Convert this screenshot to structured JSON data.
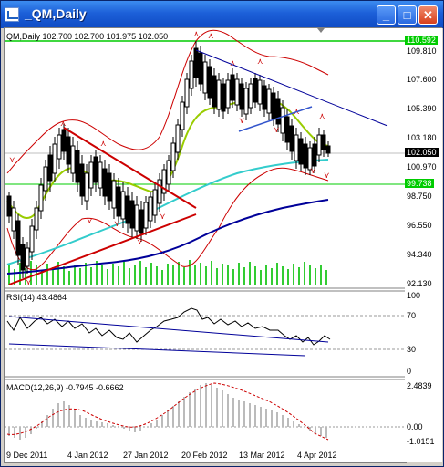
{
  "window": {
    "title": "_QM,Daily",
    "buttons": [
      "minimize",
      "maximize",
      "close"
    ],
    "titlebar_color": "#1c5fd8"
  },
  "main_chart": {
    "header": "QM,Daily  102.700 102.700 101.975 102.050",
    "y_ticks": [
      "109.810",
      "107.600",
      "105.390",
      "103.180",
      "100.970",
      "98.750",
      "96.550",
      "94.340",
      "92.130"
    ],
    "price_boxes": {
      "top_level": "110.592",
      "current": "102.050",
      "low_level": "99.738"
    },
    "colors": {
      "candles": "#000000",
      "bollinger": "#cc0000",
      "ma_fast": "#99cc00",
      "ma_mid": "#33cccc",
      "ma_slow": "#000099",
      "trend_red": "#cc0000",
      "trend_blue": "#000099",
      "level_line": "#00cc00",
      "volume": "#33cc33"
    }
  },
  "rsi_panel": {
    "header": "RSI(14) 43.4864",
    "y_ticks": [
      "100",
      "70",
      "30",
      "0"
    ]
  },
  "macd_panel": {
    "header": "MACD(12,26,9) -0.7945 -0.6662",
    "y_ticks": [
      "2.4839",
      "0.00",
      "-1.0151"
    ]
  },
  "x_axis": {
    "labels": [
      "9 Dec 2011",
      "4 Jan 2012",
      "27 Jan 2012",
      "20 Feb 2012",
      "13 Mar 2012",
      "4 Apr 2012"
    ]
  }
}
